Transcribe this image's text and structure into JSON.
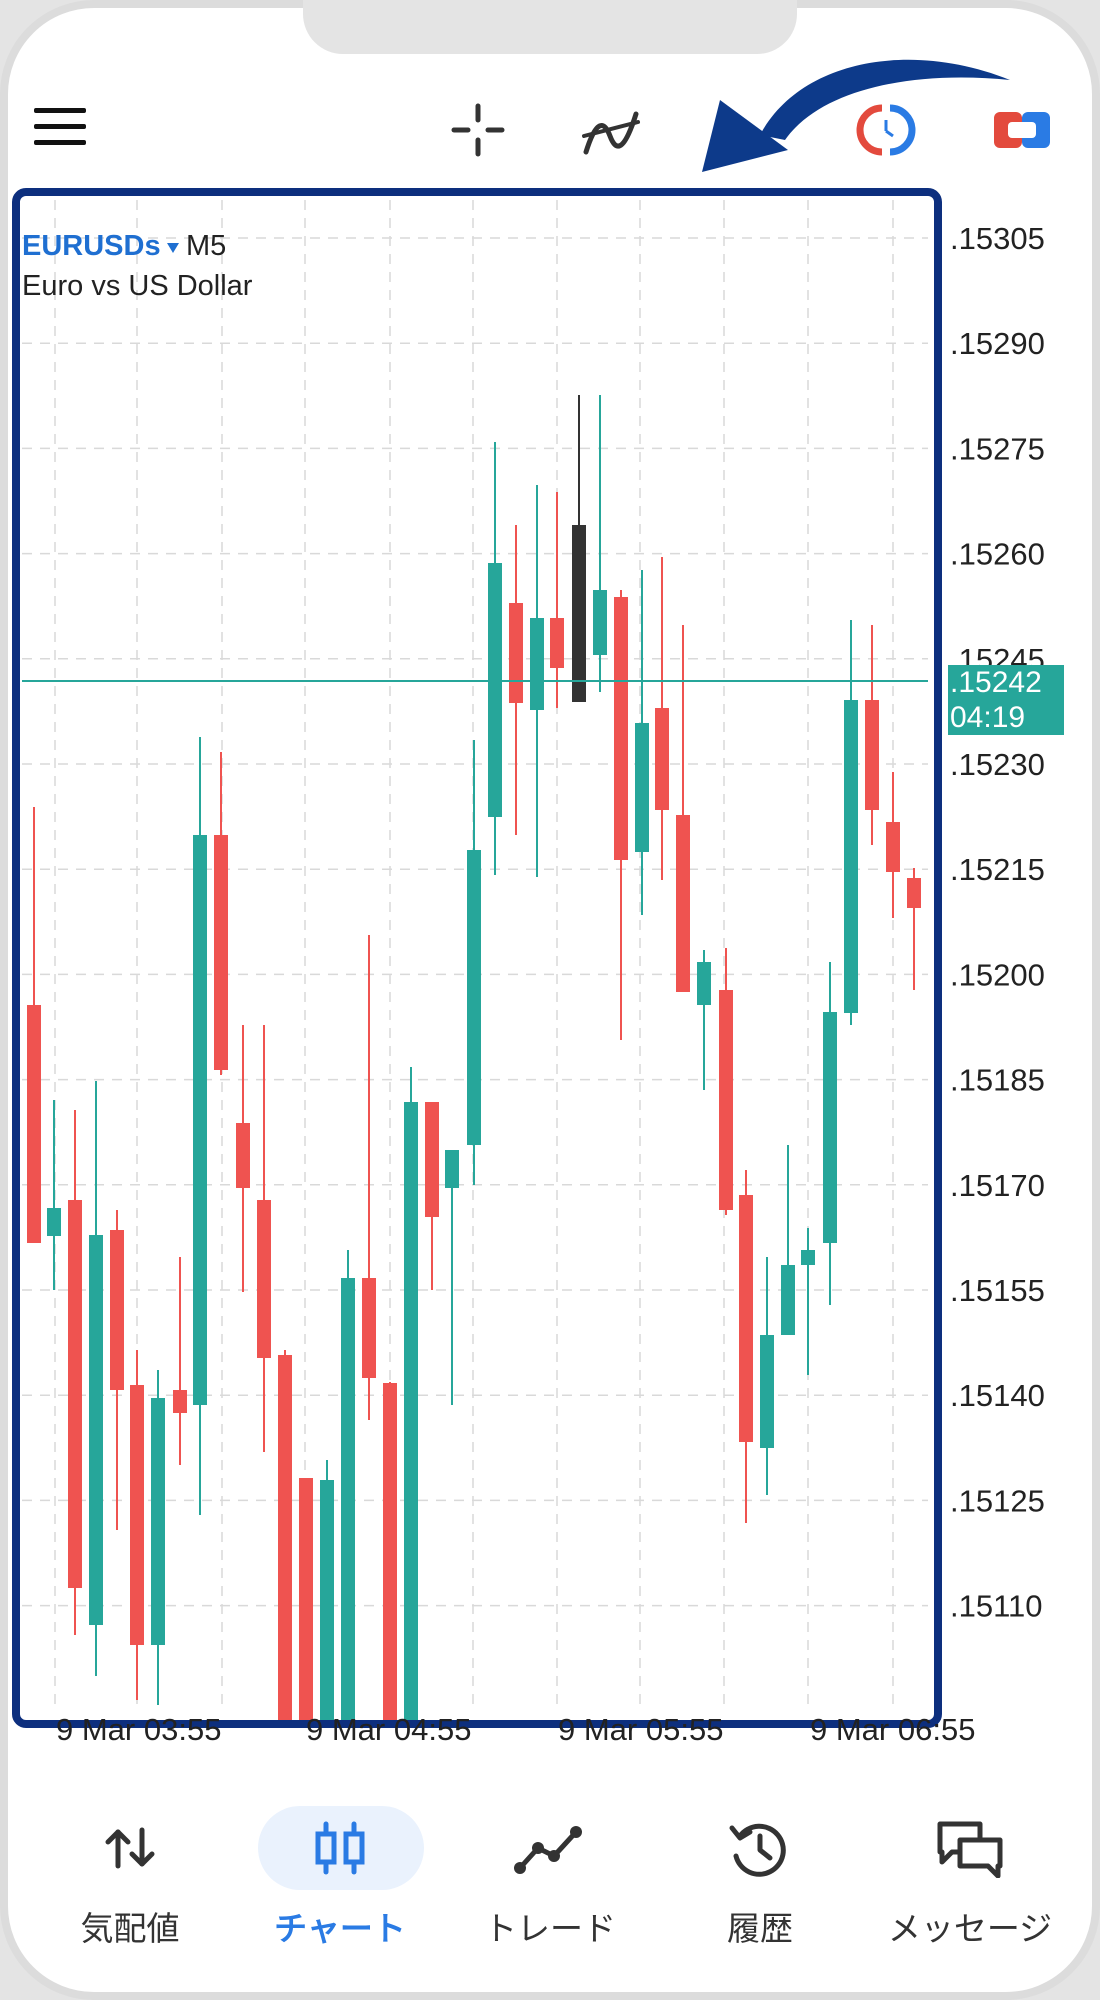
{
  "symbol": "EURUSDs",
  "timeframe": "M5",
  "description": "Euro vs US Dollar",
  "price_labels": [
    ".15305",
    ".15290",
    ".15275",
    ".15260",
    ".15245",
    ".15230",
    ".15215",
    ".15200",
    ".15185",
    ".15170",
    ".15155",
    ".15140",
    ".15125",
    ".15110"
  ],
  "current_price": ".15242",
  "countdown": "04:19",
  "time_labels": [
    "9 Mar 03:55",
    "9 Mar 04:55",
    "9 Mar 05:55",
    "9 Mar 06:55"
  ],
  "nav": {
    "quotes": "気配値",
    "chart": "チャート",
    "trade": "トレード",
    "history": "履歴",
    "messages": "メッセージ"
  },
  "colors": {
    "bull": "#26a69a",
    "bear": "#ef5350",
    "highlight_frame": "#0d2f7e",
    "accent": "#2a7be4"
  }
}
